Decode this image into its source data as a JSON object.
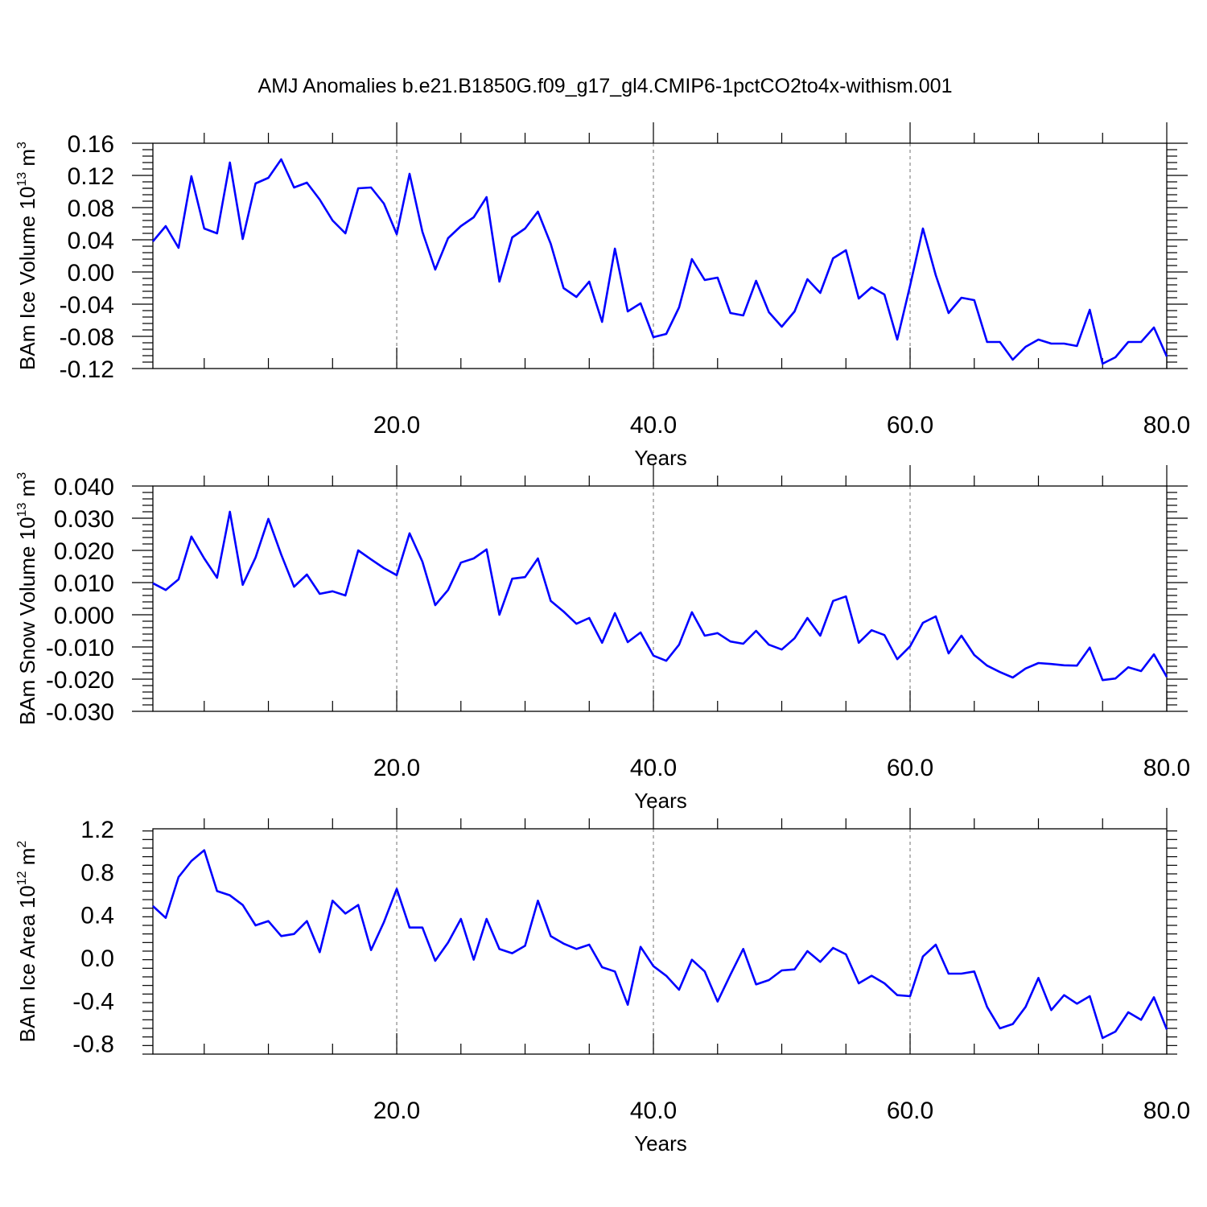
{
  "title": "AMJ Anomalies b.e21.B1850G.f09_g17_gl4.CMIP6-1pctCO2to4x-withism.001",
  "colors": {
    "line": "#0000ff",
    "grid": "#888888"
  },
  "chart_data": [
    {
      "type": "line",
      "title": "AMJ Anomalies b.e21.B1850G.f09_g17_gl4.CMIP6-1pctCO2to4x-withism.001",
      "xlabel": "Years",
      "ylabel": {
        "text": "BAm Ice Volume 10",
        "sup1": "13",
        "mid": " m",
        "sup2": "3"
      },
      "xlim": [
        1,
        80
      ],
      "ylim": [
        -0.12,
        0.16
      ],
      "xticks": [
        20,
        40,
        60,
        80
      ],
      "xtick_labels": [
        "20.0",
        "40.0",
        "60.0",
        "80.0"
      ],
      "yticks": [
        -0.12,
        -0.08,
        -0.04,
        0.0,
        0.04,
        0.08,
        0.12,
        0.16
      ],
      "ytick_labels": [
        "-0.12",
        "-0.08",
        "-0.04",
        "0.00",
        "0.04",
        "0.08",
        "0.12",
        "0.16"
      ],
      "grid": "x-dashed",
      "x": [
        1,
        2,
        3,
        4,
        5,
        6,
        7,
        8,
        9,
        10,
        11,
        12,
        13,
        14,
        15,
        16,
        17,
        18,
        19,
        20,
        21,
        22,
        23,
        24,
        25,
        26,
        27,
        28,
        29,
        30,
        31,
        32,
        33,
        34,
        35,
        36,
        37,
        38,
        39,
        40,
        41,
        42,
        43,
        44,
        45,
        46,
        47,
        48,
        49,
        50,
        51,
        52,
        53,
        54,
        55,
        56,
        57,
        58,
        59,
        60,
        61,
        62,
        63,
        64,
        65,
        66,
        67,
        68,
        69,
        70,
        71,
        72,
        73,
        74,
        75,
        76,
        77,
        78,
        79,
        80
      ],
      "values": [
        0.038,
        0.057,
        0.03,
        0.119,
        0.054,
        0.048,
        0.136,
        0.041,
        0.11,
        0.117,
        0.14,
        0.105,
        0.111,
        0.09,
        0.064,
        0.048,
        0.104,
        0.105,
        0.085,
        0.047,
        0.122,
        0.05,
        0.003,
        0.042,
        0.057,
        0.068,
        0.093,
        -0.012,
        0.043,
        0.054,
        0.075,
        0.035,
        -0.02,
        -0.031,
        -0.012,
        -0.062,
        0.029,
        -0.049,
        -0.039,
        -0.081,
        -0.077,
        -0.044,
        0.016,
        -0.01,
        -0.007,
        -0.051,
        -0.054,
        -0.011,
        -0.05,
        -0.068,
        -0.049,
        -0.009,
        -0.026,
        0.017,
        0.027,
        -0.033,
        -0.019,
        -0.028,
        -0.084,
        -0.017,
        0.054,
        -0.004,
        -0.051,
        -0.032,
        -0.035,
        -0.087,
        -0.087,
        -0.109,
        -0.093,
        -0.084,
        -0.089,
        -0.089,
        -0.092,
        -0.047,
        -0.114,
        -0.106,
        -0.087,
        -0.087,
        -0.069,
        -0.105
      ]
    },
    {
      "type": "line",
      "xlabel": "Years",
      "ylabel": {
        "text": "BAm Snow Volume 10",
        "sup1": "13",
        "mid": " m",
        "sup2": "3"
      },
      "xlim": [
        1,
        80
      ],
      "ylim": [
        -0.03,
        0.04
      ],
      "xticks": [
        20,
        40,
        60,
        80
      ],
      "xtick_labels": [
        "20.0",
        "40.0",
        "60.0",
        "80.0"
      ],
      "yticks": [
        -0.03,
        -0.02,
        -0.01,
        0.0,
        0.01,
        0.02,
        0.03,
        0.04
      ],
      "ytick_labels": [
        "-0.030",
        "-0.020",
        "-0.010",
        "0.000",
        "0.010",
        "0.020",
        "0.030",
        "0.040"
      ],
      "grid": "x-dashed",
      "x": [
        1,
        2,
        3,
        4,
        5,
        6,
        7,
        8,
        9,
        10,
        11,
        12,
        13,
        14,
        15,
        16,
        17,
        18,
        19,
        20,
        21,
        22,
        23,
        24,
        25,
        26,
        27,
        28,
        29,
        30,
        31,
        32,
        33,
        34,
        35,
        36,
        37,
        38,
        39,
        40,
        41,
        42,
        43,
        44,
        45,
        46,
        47,
        48,
        49,
        50,
        51,
        52,
        53,
        54,
        55,
        56,
        57,
        58,
        59,
        60,
        61,
        62,
        63,
        64,
        65,
        66,
        67,
        68,
        69,
        70,
        71,
        72,
        73,
        74,
        75,
        76,
        77,
        78,
        79,
        80
      ],
      "values": [
        0.0098,
        0.0077,
        0.011,
        0.0243,
        0.0175,
        0.0115,
        0.032,
        0.0093,
        0.0178,
        0.0298,
        0.0187,
        0.0087,
        0.0125,
        0.0065,
        0.0073,
        0.006,
        0.02,
        0.0172,
        0.0145,
        0.0123,
        0.0253,
        0.0165,
        0.003,
        0.0077,
        0.0162,
        0.0175,
        0.0203,
        0.0,
        0.0112,
        0.0117,
        0.0175,
        0.0043,
        0.001,
        -0.0028,
        -0.001,
        -0.0087,
        0.0005,
        -0.0085,
        -0.0055,
        -0.0127,
        -0.0143,
        -0.0093,
        0.0008,
        -0.0065,
        -0.0057,
        -0.0083,
        -0.009,
        -0.005,
        -0.0093,
        -0.0108,
        -0.0073,
        -0.001,
        -0.0065,
        0.0043,
        0.0057,
        -0.0087,
        -0.0048,
        -0.0063,
        -0.0138,
        -0.0098,
        -0.0025,
        -0.0005,
        -0.012,
        -0.0065,
        -0.0125,
        -0.0158,
        -0.0178,
        -0.0195,
        -0.0167,
        -0.015,
        -0.0153,
        -0.0157,
        -0.0158,
        -0.0102,
        -0.0203,
        -0.0198,
        -0.0163,
        -0.0175,
        -0.0123,
        -0.0193
      ]
    },
    {
      "type": "line",
      "xlabel": "Years",
      "ylabel": {
        "text": "BAm Ice Area 10",
        "sup1": "12",
        "mid": " m",
        "sup2": "2"
      },
      "xlim": [
        1,
        80
      ],
      "ylim": [
        -0.9,
        1.2
      ],
      "xticks": [
        20,
        40,
        60,
        80
      ],
      "xtick_labels": [
        "20.0",
        "40.0",
        "60.0",
        "80.0"
      ],
      "yticks": [
        -0.8,
        -0.4,
        0.0,
        0.4,
        0.8,
        1.2
      ],
      "ytick_labels": [
        "-0.8",
        "-0.4",
        "0.0",
        "0.4",
        "0.8",
        "1.2"
      ],
      "grid": "x-dashed",
      "x": [
        1,
        2,
        3,
        4,
        5,
        6,
        7,
        8,
        9,
        10,
        11,
        12,
        13,
        14,
        15,
        16,
        17,
        18,
        19,
        20,
        21,
        22,
        23,
        24,
        25,
        26,
        27,
        28,
        29,
        30,
        31,
        32,
        33,
        34,
        35,
        36,
        37,
        38,
        39,
        40,
        41,
        42,
        43,
        44,
        45,
        46,
        47,
        48,
        49,
        50,
        51,
        52,
        53,
        54,
        55,
        56,
        57,
        58,
        59,
        60,
        61,
        62,
        63,
        64,
        65,
        66,
        67,
        68,
        69,
        70,
        71,
        72,
        73,
        74,
        75,
        76,
        77,
        78,
        79,
        80
      ],
      "values": [
        0.48,
        0.37,
        0.75,
        0.9,
        1.0,
        0.62,
        0.58,
        0.49,
        0.3,
        0.34,
        0.2,
        0.22,
        0.34,
        0.05,
        0.53,
        0.41,
        0.49,
        0.07,
        0.33,
        0.64,
        0.28,
        0.28,
        -0.03,
        0.14,
        0.36,
        -0.02,
        0.36,
        0.08,
        0.04,
        0.11,
        0.53,
        0.2,
        0.13,
        0.08,
        0.12,
        -0.09,
        -0.13,
        -0.44,
        0.1,
        -0.08,
        -0.17,
        -0.3,
        -0.02,
        -0.13,
        -0.41,
        -0.16,
        0.08,
        -0.25,
        -0.21,
        -0.12,
        -0.11,
        0.06,
        -0.04,
        0.09,
        0.03,
        -0.24,
        -0.17,
        -0.24,
        -0.35,
        -0.36,
        0.01,
        0.12,
        -0.15,
        -0.15,
        -0.13,
        -0.46,
        -0.66,
        -0.62,
        -0.46,
        -0.19,
        -0.49,
        -0.35,
        -0.43,
        -0.36,
        -0.75,
        -0.69,
        -0.51,
        -0.58,
        -0.37,
        -0.67
      ]
    }
  ]
}
